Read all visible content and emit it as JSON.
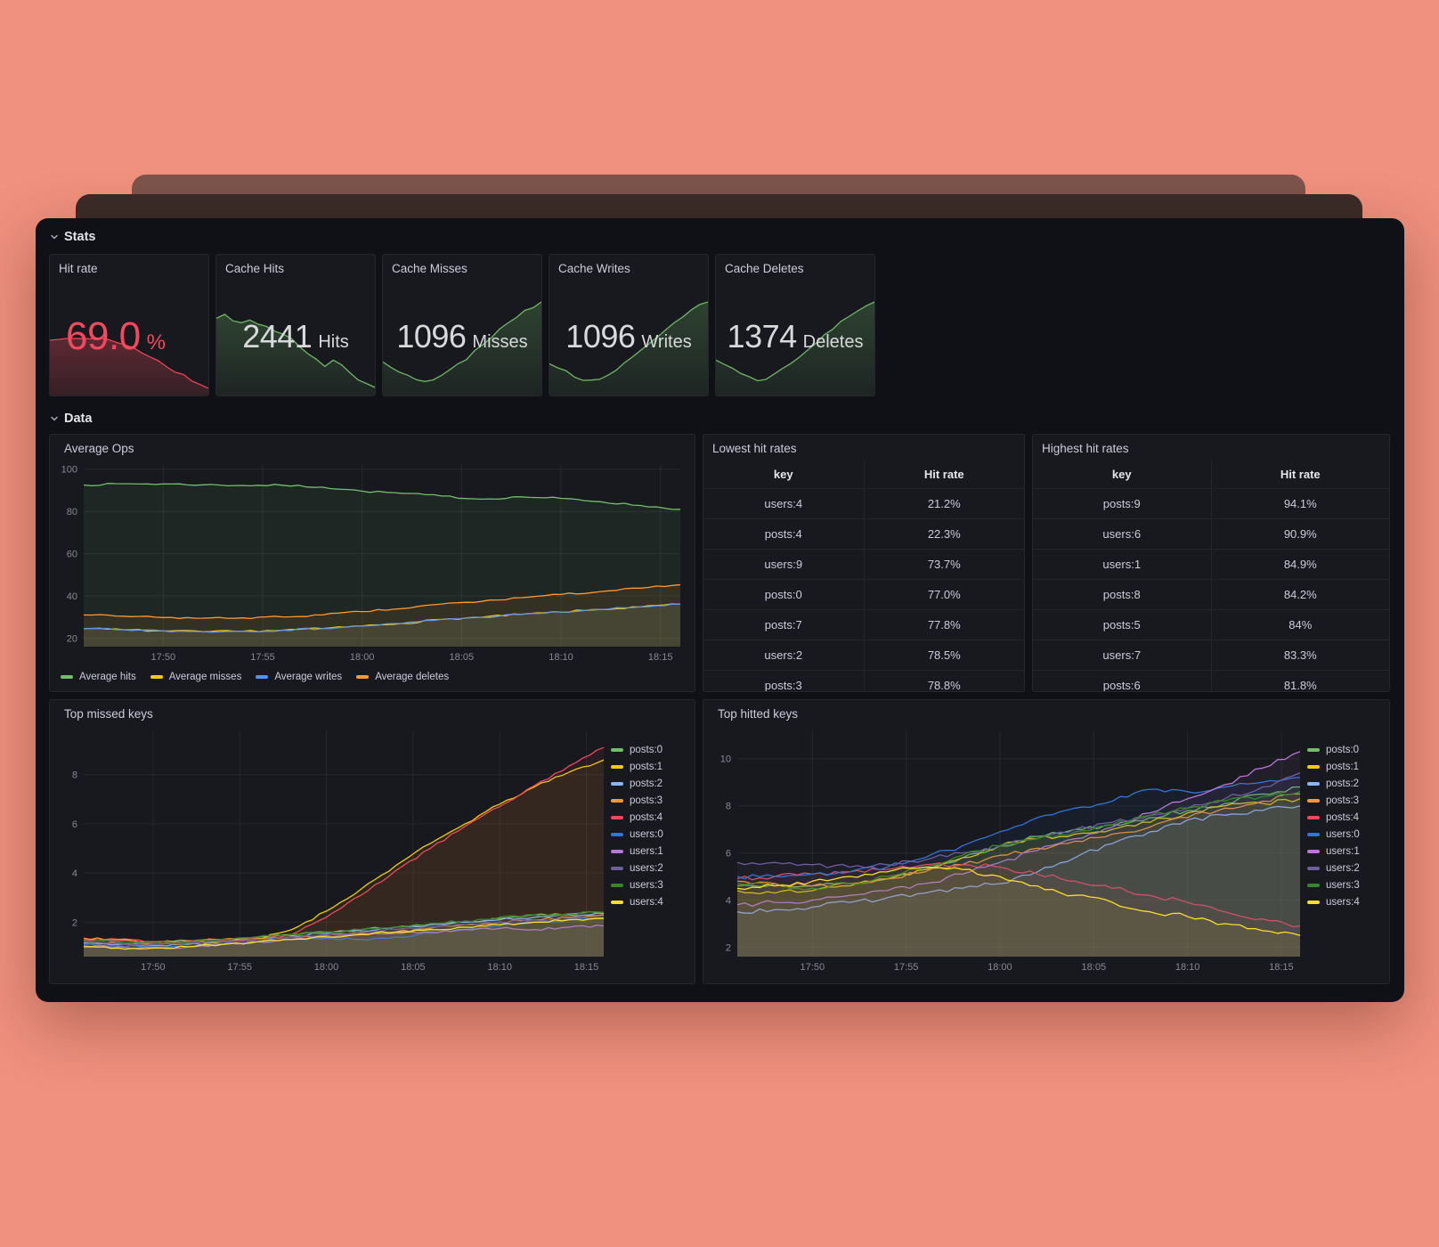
{
  "sections": {
    "stats_label": "Stats",
    "data_label": "Data"
  },
  "stats": [
    {
      "title": "Hit rate",
      "value": "69.0",
      "unit": "%",
      "color": "#F2495C",
      "spark_color": "#F2495C",
      "spark_top_opacity": 0.32,
      "spark_bottom_opacity": 0.14
    },
    {
      "title": "Cache Hits",
      "value": "2441",
      "unit": "Hits",
      "color": "#D8D9DA",
      "spark_color": "#73BF69",
      "spark_top_opacity": 0.25,
      "spark_bottom_opacity": 0.07
    },
    {
      "title": "Cache Misses",
      "value": "1096",
      "unit": "Misses",
      "color": "#D8D9DA",
      "spark_color": "#73BF69",
      "spark_top_opacity": 0.25,
      "spark_bottom_opacity": 0.07
    },
    {
      "title": "Cache Writes",
      "value": "1096",
      "unit": "Writes",
      "color": "#D8D9DA",
      "spark_color": "#73BF69",
      "spark_top_opacity": 0.25,
      "spark_bottom_opacity": 0.07
    },
    {
      "title": "Cache Deletes",
      "value": "1374",
      "unit": "Deletes",
      "color": "#D8D9DA",
      "spark_color": "#73BF69",
      "spark_top_opacity": 0.25,
      "spark_bottom_opacity": 0.07
    }
  ],
  "tables": {
    "lowest": {
      "title": "Lowest hit rates",
      "columns": [
        "key",
        "Hit rate"
      ],
      "rows": [
        [
          "users:4",
          "21.2%"
        ],
        [
          "posts:4",
          "22.3%"
        ],
        [
          "users:9",
          "73.7%"
        ],
        [
          "posts:0",
          "77.0%"
        ],
        [
          "posts:7",
          "77.8%"
        ],
        [
          "users:2",
          "78.5%"
        ],
        [
          "posts:3",
          "78.8%"
        ]
      ]
    },
    "highest": {
      "title": "Highest hit rates",
      "columns": [
        "key",
        "Hit rate"
      ],
      "rows": [
        [
          "posts:9",
          "94.1%"
        ],
        [
          "users:6",
          "90.9%"
        ],
        [
          "users:1",
          "84.9%"
        ],
        [
          "posts:8",
          "84.2%"
        ],
        [
          "posts:5",
          "84%"
        ],
        [
          "users:7",
          "83.3%"
        ],
        [
          "posts:6",
          "81.8%"
        ]
      ]
    }
  },
  "chart_data": {
    "average_ops": {
      "type": "line",
      "title": "Average Ops",
      "x_minutes_max": 30,
      "x_step_minutes": 2,
      "x_start_time": "17:46",
      "x_ticks": [
        {
          "m": 4,
          "label": "17:50"
        },
        {
          "m": 9,
          "label": "17:55"
        },
        {
          "m": 14,
          "label": "18:00"
        },
        {
          "m": 19,
          "label": "18:05"
        },
        {
          "m": 24,
          "label": "18:10"
        },
        {
          "m": 29,
          "label": "18:15"
        }
      ],
      "ylim": [
        16,
        102
      ],
      "yticks": [
        20,
        40,
        60,
        80,
        100
      ],
      "legend_position": "bottom",
      "grid": true,
      "series": [
        {
          "name": "Average hits",
          "color": "#73BF69",
          "values": [
            92.5,
            93.1,
            93.0,
            92.6,
            92.3,
            92.4,
            91.5,
            89.6,
            88.6,
            87.3,
            85.8,
            86.9,
            86.2,
            84.6,
            82.8,
            81.0
          ]
        },
        {
          "name": "Average misses",
          "color": "#F2CC0C",
          "values": [
            24.6,
            24.0,
            23.4,
            23.1,
            23.3,
            23.8,
            24.6,
            25.8,
            27.0,
            28.9,
            29.9,
            31.3,
            32.4,
            33.6,
            34.8,
            36.1
          ]
        },
        {
          "name": "Average writes",
          "color": "#5794F2",
          "values": [
            24.6,
            24.0,
            23.4,
            23.1,
            23.3,
            23.8,
            24.6,
            25.8,
            27.0,
            28.9,
            29.9,
            31.3,
            32.4,
            33.6,
            34.8,
            36.1
          ]
        },
        {
          "name": "Average deletes",
          "color": "#FF9830",
          "values": [
            31.0,
            30.4,
            29.8,
            29.5,
            29.6,
            30.1,
            31.0,
            32.6,
            34.0,
            36.2,
            37.4,
            39.2,
            40.7,
            42.1,
            43.7,
            45.3
          ]
        }
      ]
    },
    "top_missed_keys": {
      "type": "line",
      "title": "Top missed keys",
      "x_minutes_max": 30,
      "x_step_minutes": 2,
      "x_start_time": "17:46",
      "x_ticks": [
        {
          "m": 4,
          "label": "17:50"
        },
        {
          "m": 9,
          "label": "17:55"
        },
        {
          "m": 14,
          "label": "18:00"
        },
        {
          "m": 19,
          "label": "18:05"
        },
        {
          "m": 24,
          "label": "18:10"
        },
        {
          "m": 29,
          "label": "18:15"
        }
      ],
      "ylim": [
        0.6,
        9.8
      ],
      "yticks": [
        2,
        4,
        6,
        8
      ],
      "legend_position": "right",
      "grid": true,
      "series": [
        {
          "name": "posts:0",
          "color": "#73BF69",
          "values": [
            1.3,
            1.25,
            1.2,
            1.25,
            1.3,
            1.4,
            1.5,
            1.6,
            1.7,
            1.8,
            1.9,
            2.0,
            2.15,
            2.3,
            2.35,
            2.4
          ]
        },
        {
          "name": "posts:1",
          "color": "#F2CC0C",
          "values": [
            1.2,
            1.15,
            1.1,
            1.15,
            1.2,
            1.3,
            1.7,
            2.45,
            3.35,
            4.3,
            5.2,
            6.0,
            6.8,
            7.5,
            8.1,
            8.6
          ]
        },
        {
          "name": "posts:2",
          "color": "#8AB8FF",
          "values": [
            1.15,
            1.1,
            1.05,
            1.1,
            1.2,
            1.3,
            1.45,
            1.55,
            1.65,
            1.8,
            1.9,
            2.0,
            2.1,
            2.2,
            2.3,
            2.35
          ]
        },
        {
          "name": "posts:3",
          "color": "#FF9830",
          "values": [
            1.35,
            1.3,
            1.2,
            1.25,
            1.3,
            1.35,
            1.4,
            1.45,
            1.55,
            1.6,
            1.75,
            1.9,
            2.0,
            2.1,
            2.2,
            2.3
          ]
        },
        {
          "name": "posts:4",
          "color": "#F2495C",
          "values": [
            1.3,
            1.25,
            1.2,
            1.2,
            1.25,
            1.3,
            1.5,
            2.2,
            3.1,
            4.1,
            5.0,
            5.9,
            6.7,
            7.55,
            8.35,
            9.1
          ]
        },
        {
          "name": "users:0",
          "color": "#3274D9",
          "values": [
            1.1,
            1.05,
            1.0,
            1.0,
            1.1,
            1.2,
            1.3,
            1.35,
            1.3,
            1.4,
            1.55,
            1.7,
            1.85,
            2.0,
            2.1,
            2.2
          ]
        },
        {
          "name": "users:1",
          "color": "#B877D9",
          "values": [
            1.05,
            1.0,
            0.95,
            1.0,
            1.1,
            1.2,
            1.3,
            1.4,
            1.5,
            1.55,
            1.6,
            1.7,
            1.75,
            1.7,
            1.8,
            1.85
          ]
        },
        {
          "name": "users:2",
          "color": "#705DA0",
          "values": [
            1.2,
            1.15,
            1.1,
            1.15,
            1.2,
            1.3,
            1.4,
            1.5,
            1.6,
            1.7,
            1.8,
            1.9,
            2.0,
            2.1,
            2.15,
            2.2
          ]
        },
        {
          "name": "users:3",
          "color": "#37872D",
          "values": [
            1.25,
            1.2,
            1.15,
            1.2,
            1.3,
            1.4,
            1.5,
            1.6,
            1.7,
            1.8,
            1.95,
            2.05,
            2.2,
            2.3,
            2.35,
            2.4
          ]
        },
        {
          "name": "users:4",
          "color": "#FADE2A",
          "values": [
            1.0,
            0.95,
            0.95,
            1.0,
            1.1,
            1.2,
            1.3,
            1.4,
            1.5,
            1.6,
            1.7,
            1.8,
            1.9,
            2.0,
            2.1,
            2.15
          ]
        }
      ]
    },
    "top_hitted_keys": {
      "type": "line",
      "title": "Top hitted keys",
      "x_minutes_max": 30,
      "x_step_minutes": 2,
      "x_start_time": "17:46",
      "x_ticks": [
        {
          "m": 4,
          "label": "17:50"
        },
        {
          "m": 9,
          "label": "17:55"
        },
        {
          "m": 14,
          "label": "18:00"
        },
        {
          "m": 19,
          "label": "18:05"
        },
        {
          "m": 24,
          "label": "18:10"
        },
        {
          "m": 29,
          "label": "18:15"
        }
      ],
      "ylim": [
        1.6,
        11.2
      ],
      "yticks": [
        2,
        4,
        6,
        8,
        10
      ],
      "legend_position": "right",
      "grid": true,
      "series": [
        {
          "name": "posts:0",
          "color": "#73BF69",
          "values": [
            4.6,
            4.7,
            4.6,
            4.7,
            4.9,
            5.3,
            5.8,
            6.3,
            6.7,
            7.0,
            7.2,
            7.5,
            7.8,
            8.1,
            8.5,
            8.8
          ]
        },
        {
          "name": "posts:1",
          "color": "#F2CC0C",
          "values": [
            4.4,
            4.3,
            4.4,
            4.6,
            4.9,
            5.3,
            5.8,
            6.3,
            6.6,
            6.8,
            7.0,
            7.3,
            7.7,
            8.0,
            8.1,
            8.3
          ]
        },
        {
          "name": "posts:2",
          "color": "#8AB8FF",
          "values": [
            3.5,
            3.6,
            3.7,
            3.9,
            4.1,
            4.3,
            4.5,
            4.7,
            5.2,
            5.8,
            6.4,
            6.9,
            7.4,
            7.6,
            7.8,
            8.0
          ]
        },
        {
          "name": "posts:3",
          "color": "#FF9830",
          "values": [
            4.8,
            4.7,
            4.6,
            4.7,
            4.9,
            5.2,
            5.5,
            5.9,
            6.2,
            6.5,
            6.8,
            7.1,
            7.5,
            7.9,
            8.2,
            8.5
          ]
        },
        {
          "name": "posts:4",
          "color": "#F2495C",
          "values": [
            4.9,
            5.0,
            5.1,
            5.2,
            5.3,
            5.5,
            5.5,
            5.4,
            5.1,
            4.8,
            4.5,
            4.2,
            3.9,
            3.5,
            3.2,
            2.9
          ]
        },
        {
          "name": "users:0",
          "color": "#3274D9",
          "values": [
            5.0,
            5.0,
            5.1,
            5.2,
            5.4,
            5.8,
            6.3,
            6.9,
            7.5,
            7.9,
            8.2,
            8.7,
            8.6,
            8.8,
            9.0,
            9.2
          ]
        },
        {
          "name": "users:1",
          "color": "#B877D9",
          "values": [
            3.8,
            3.9,
            4.0,
            4.2,
            4.4,
            4.7,
            5.1,
            5.6,
            6.1,
            6.6,
            7.1,
            7.7,
            8.3,
            8.9,
            9.6,
            10.3
          ]
        },
        {
          "name": "users:2",
          "color": "#705DA0",
          "values": [
            5.6,
            5.6,
            5.5,
            5.4,
            5.5,
            5.7,
            6.0,
            6.3,
            6.6,
            7.0,
            7.3,
            7.6,
            7.9,
            8.3,
            8.8,
            9.4
          ]
        },
        {
          "name": "users:3",
          "color": "#37872D",
          "values": [
            4.7,
            4.6,
            4.5,
            4.7,
            5.0,
            5.4,
            5.9,
            6.3,
            6.6,
            6.9,
            7.2,
            7.6,
            7.9,
            8.2,
            8.4,
            8.6
          ]
        },
        {
          "name": "users:4",
          "color": "#FADE2A",
          "values": [
            4.5,
            4.6,
            4.8,
            5.0,
            5.2,
            5.4,
            5.3,
            5.0,
            4.6,
            4.2,
            3.9,
            3.5,
            3.3,
            3.0,
            2.7,
            2.5
          ]
        }
      ]
    },
    "stat_sparklines": {
      "type": "area",
      "series": [
        {
          "name": "Hit rate trend",
          "values": [
            0.56,
            0.57,
            0.58,
            0.585,
            0.58,
            0.575,
            0.57,
            0.555,
            0.54,
            0.51,
            0.47,
            0.43,
            0.38,
            0.33,
            0.27,
            0.22,
            0.17,
            0.12,
            0.07,
            0.03
          ]
        },
        {
          "name": "Cache hits trend",
          "values": [
            0.8,
            0.84,
            0.78,
            0.76,
            0.79,
            0.74,
            0.7,
            0.66,
            0.62,
            0.57,
            0.5,
            0.42,
            0.36,
            0.28,
            0.34,
            0.3,
            0.2,
            0.13,
            0.08,
            0.04
          ]
        },
        {
          "name": "Cache misses trend",
          "values": [
            0.32,
            0.27,
            0.22,
            0.17,
            0.13,
            0.11,
            0.13,
            0.17,
            0.22,
            0.29,
            0.36,
            0.44,
            0.52,
            0.6,
            0.67,
            0.74,
            0.81,
            0.88,
            0.93,
            0.98
          ]
        },
        {
          "name": "Cache writes trend",
          "values": [
            0.3,
            0.26,
            0.21,
            0.16,
            0.13,
            0.12,
            0.14,
            0.18,
            0.23,
            0.3,
            0.37,
            0.45,
            0.53,
            0.61,
            0.68,
            0.75,
            0.82,
            0.88,
            0.94,
            0.98
          ]
        },
        {
          "name": "Cache deletes trend",
          "values": [
            0.34,
            0.29,
            0.24,
            0.19,
            0.15,
            0.12,
            0.14,
            0.19,
            0.25,
            0.31,
            0.38,
            0.46,
            0.54,
            0.62,
            0.69,
            0.76,
            0.83,
            0.89,
            0.94,
            0.98
          ]
        }
      ]
    }
  }
}
